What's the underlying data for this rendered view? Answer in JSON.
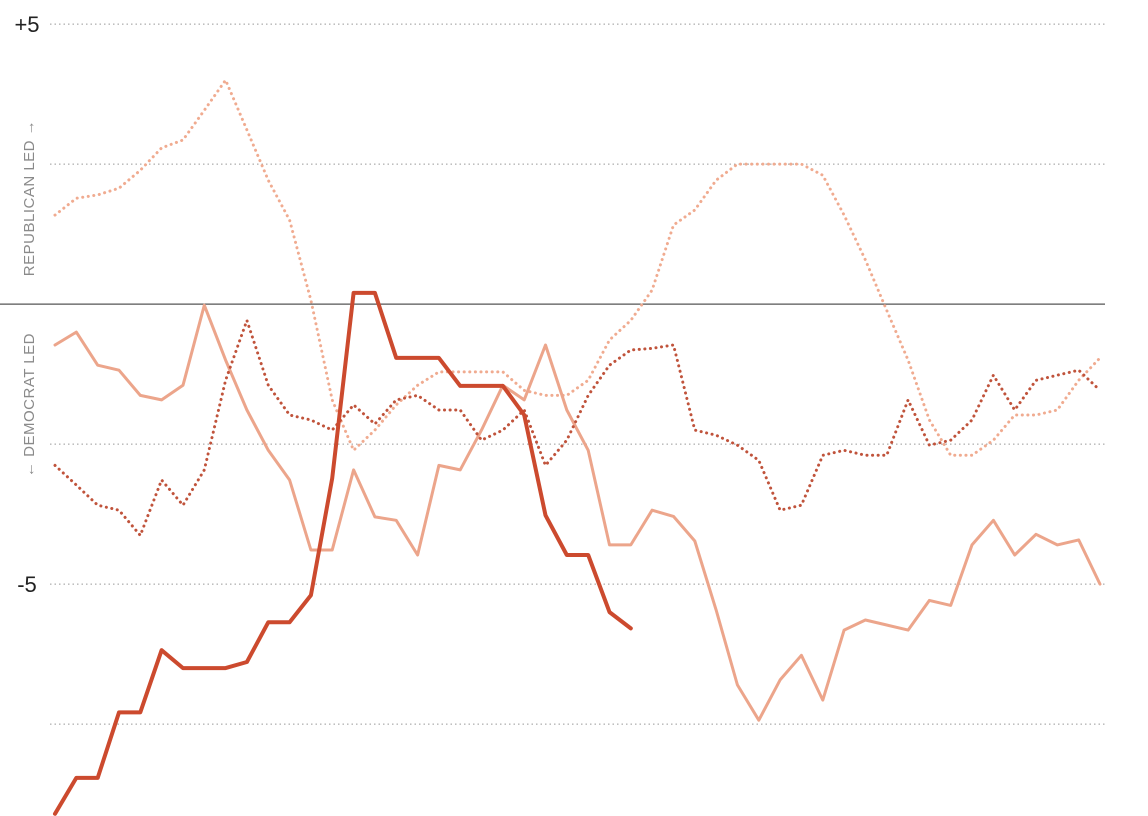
{
  "chart_data": {
    "type": "line",
    "annotations": [
      "REPUBLICAN LED →",
      "← DEMOCRAT LED"
    ],
    "xlim": [
      0,
      49
    ],
    "ylim": [
      -9.14,
      5.43
    ],
    "yticks": [
      {
        "value": 5,
        "label": "+5"
      },
      {
        "value": 2.5,
        "label": null
      },
      {
        "value": 0,
        "label": null
      },
      {
        "value": -2.5,
        "label": null
      },
      {
        "value": -5,
        "label": "-5"
      },
      {
        "value": -7.5,
        "label": null
      }
    ],
    "zero_line": true,
    "grid": true,
    "series": [
      {
        "color": "#f0ab90",
        "style": "dotted",
        "values": [
          1.59,
          1.89,
          1.95,
          2.07,
          2.39,
          2.79,
          2.93,
          3.46,
          4.0,
          3.11,
          2.21,
          1.5,
          0.07,
          -1.71,
          -2.61,
          -2.25,
          -1.8,
          -1.45,
          -1.21,
          -1.21,
          -1.21,
          -1.21,
          -1.54,
          -1.63,
          -1.63,
          -1.36,
          -0.64,
          -0.29,
          0.25,
          1.41,
          1.68,
          2.21,
          2.5,
          2.5,
          2.5,
          2.5,
          2.3,
          1.59,
          0.79,
          -0.11,
          -1.0,
          -2.07,
          -2.7,
          -2.7,
          -2.43,
          -1.98,
          -1.98,
          -1.89,
          -1.36,
          -0.96
        ]
      },
      {
        "color": "#eca58b",
        "style": "solid",
        "values": [
          -0.73,
          -0.5,
          -1.09,
          -1.18,
          -1.63,
          -1.71,
          -1.45,
          -0.02,
          -1.0,
          -1.89,
          -2.61,
          -3.14,
          -4.39,
          -4.39,
          -2.96,
          -3.8,
          -3.86,
          -4.48,
          -2.88,
          -2.96,
          -2.25,
          -1.45,
          -1.71,
          -0.73,
          -1.89,
          -2.61,
          -4.3,
          -4.3,
          -3.68,
          -3.79,
          -4.23,
          -5.46,
          -6.8,
          -7.43,
          -6.71,
          -6.27,
          -7.07,
          -5.82,
          -5.64,
          -5.73,
          -5.82,
          -5.29,
          -5.38,
          -4.3,
          -3.86,
          -4.48,
          -4.11,
          -4.3,
          -4.21,
          -5.0
        ]
      },
      {
        "color": "#c0533b",
        "style": "dotted",
        "values": [
          -2.88,
          -3.23,
          -3.59,
          -3.68,
          -4.13,
          -3.14,
          -3.59,
          -2.96,
          -1.36,
          -0.29,
          -1.45,
          -1.98,
          -2.07,
          -2.25,
          -1.8,
          -2.14,
          -1.71,
          -1.63,
          -1.89,
          -1.89,
          -2.43,
          -2.25,
          -1.89,
          -2.88,
          -2.43,
          -1.63,
          -1.09,
          -0.82,
          -0.79,
          -0.73,
          -2.25,
          -2.34,
          -2.52,
          -2.79,
          -3.68,
          -3.59,
          -2.7,
          -2.61,
          -2.7,
          -2.7,
          -1.71,
          -2.52,
          -2.43,
          -2.07,
          -1.27,
          -1.89,
          -1.36,
          -1.27,
          -1.18,
          -1.54
        ]
      },
      {
        "color": "#cc4a2e",
        "style": "bold",
        "values": [
          -9.1,
          -8.46,
          -8.46,
          -7.29,
          -7.29,
          -6.18,
          -6.5,
          -6.5,
          -6.5,
          -6.39,
          -5.68,
          -5.68,
          -5.2,
          -3.11,
          0.2,
          0.2,
          -0.96,
          -0.96,
          -0.96,
          -1.46,
          -1.46,
          -1.46,
          -1.98,
          -3.77,
          -4.48,
          -4.48,
          -5.5,
          -5.79,
          null,
          null,
          null,
          null,
          null,
          null,
          null,
          null,
          null,
          null,
          null,
          null,
          null,
          null,
          null,
          null,
          null,
          null,
          null,
          null,
          null,
          null
        ]
      }
    ]
  }
}
